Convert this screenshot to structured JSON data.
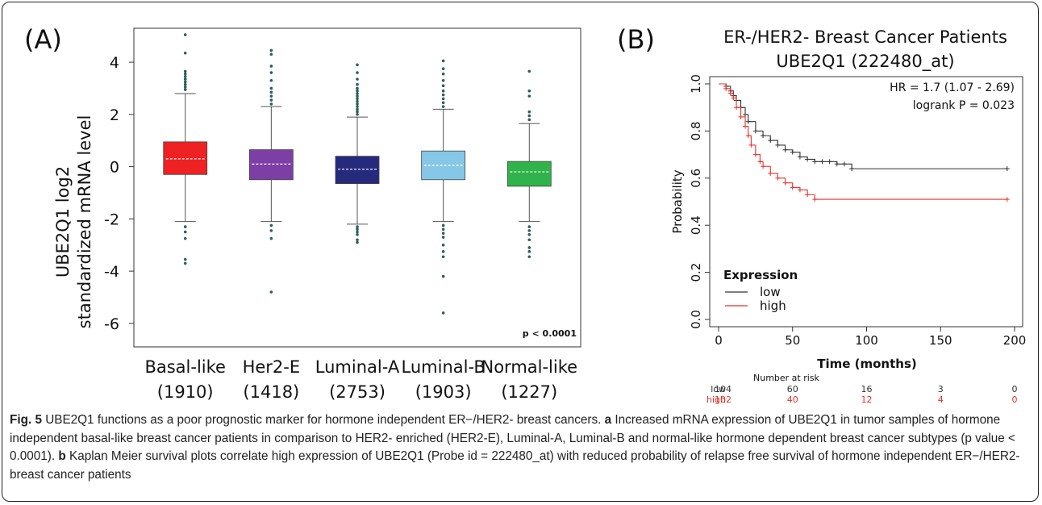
{
  "figure": {
    "caption": {
      "fig_label": "Fig. 5",
      "title": "UBE2Q1 functions as a poor prognostic marker for hormone independent ER−/HER2- breast cancers.",
      "a_label": "a",
      "a_text": "Increased mRNA expression of UBE2Q1 in tumor samples of hormone independent basal-like breast cancer patients in comparison to HER2- enriched (HER2-E), Luminal-A, Luminal-B and normal-like hormone dependent breast cancer subtypes (p value < 0.0001).",
      "b_label": "b",
      "b_text": "Kaplan Meier survival plots correlate high expression of UBE2Q1 (Probe id = 222480_at) with reduced probability of relapse free survival of hormone independent ER−/HER2- breast cancer patients"
    }
  },
  "chart_data": [
    {
      "type": "box",
      "panel_label": "(A)",
      "ylabel_line1": "UBE2Q1 log2",
      "ylabel_line2": "standardized mRNA level",
      "ylim": [
        -6.9,
        5.3
      ],
      "yticks": [
        4,
        2,
        0,
        -2,
        -4,
        -6
      ],
      "annotation": "p < 0.0001",
      "categories": [
        "Basal-like",
        "Her2-E",
        "Luminal-A",
        "Luminal-B",
        "Normal-like"
      ],
      "counts": [
        "(1910)",
        "(1418)",
        "(2753)",
        "(1903)",
        "(1227)"
      ],
      "colors": [
        "#ee2222",
        "#7d3ea6",
        "#262a7c",
        "#86c6e6",
        "#2fb34a"
      ],
      "boxes": [
        {
          "q1": -0.3,
          "median": 0.3,
          "q3": 0.95,
          "whisker_low": -2.1,
          "whisker_high": 2.8,
          "outliers": [
            2.95,
            3.05,
            3.15,
            3.25,
            3.35,
            3.45,
            3.55,
            3.65,
            4.35,
            5.05,
            -2.3,
            -2.5,
            -2.75,
            -3.55,
            -3.7
          ]
        },
        {
          "q1": -0.5,
          "median": 0.1,
          "q3": 0.65,
          "whisker_low": -2.1,
          "whisker_high": 2.3,
          "outliers": [
            2.4,
            2.55,
            2.7,
            2.85,
            3.0,
            3.3,
            3.6,
            3.85,
            4.3,
            4.45,
            -2.25,
            -2.45,
            -2.75,
            -4.8
          ]
        },
        {
          "q1": -0.65,
          "median": -0.1,
          "q3": 0.4,
          "whisker_low": -2.2,
          "whisker_high": 1.9,
          "outliers": [
            2.0,
            2.1,
            2.2,
            2.3,
            2.4,
            2.5,
            2.6,
            2.7,
            2.8,
            2.9,
            3.0,
            3.15,
            3.35,
            3.6,
            3.9,
            -2.3,
            -2.4,
            -2.5,
            -2.6,
            -2.8,
            -2.9
          ]
        },
        {
          "q1": -0.5,
          "median": 0.05,
          "q3": 0.6,
          "whisker_low": -2.1,
          "whisker_high": 2.2,
          "outliers": [
            2.3,
            2.45,
            2.6,
            2.75,
            2.9,
            3.1,
            3.3,
            3.55,
            3.75,
            4.05,
            -2.25,
            -2.4,
            -2.55,
            -2.7,
            -3.0,
            -3.25,
            -3.45,
            -4.2,
            -5.6
          ]
        },
        {
          "q1": -0.75,
          "median": -0.2,
          "q3": 0.2,
          "whisker_low": -2.1,
          "whisker_high": 1.65,
          "outliers": [
            1.8,
            1.95,
            2.1,
            2.7,
            2.9,
            3.65,
            -2.3,
            -2.45,
            -2.6,
            -2.8,
            -3.1,
            -3.25,
            -3.45
          ]
        }
      ]
    },
    {
      "type": "line",
      "subtype": "kaplan-meier",
      "panel_label": "(B)",
      "title_line1": "ER-/HER2- Breast Cancer Patients",
      "title_line2": "UBE2Q1 (222480_at)",
      "xlabel": "Time (months)",
      "ylabel": "Probability",
      "xlim": [
        0,
        200
      ],
      "ylim": [
        0,
        1
      ],
      "xticks": [
        0,
        50,
        100,
        150,
        200
      ],
      "yticks": [
        0.0,
        0.2,
        0.4,
        0.6,
        0.8,
        1.0
      ],
      "hr_text": "HR = 1.7 (1.07 - 2.69)",
      "logrank_text": "logrank P = 0.023",
      "legend": {
        "title": "Expression",
        "position": "bottom-left"
      },
      "series": [
        {
          "name": "low",
          "color": "#333333",
          "x": [
            0,
            5,
            8,
            10,
            12,
            15,
            18,
            20,
            25,
            30,
            35,
            40,
            45,
            50,
            55,
            60,
            65,
            70,
            75,
            80,
            85,
            90,
            195
          ],
          "y": [
            1.0,
            0.99,
            0.97,
            0.95,
            0.93,
            0.9,
            0.87,
            0.84,
            0.8,
            0.78,
            0.76,
            0.74,
            0.72,
            0.71,
            0.69,
            0.68,
            0.67,
            0.67,
            0.67,
            0.66,
            0.66,
            0.64,
            0.64
          ]
        },
        {
          "name": "high",
          "color": "#e8322c",
          "x": [
            0,
            5,
            8,
            10,
            12,
            15,
            18,
            20,
            22,
            25,
            28,
            30,
            35,
            40,
            45,
            50,
            55,
            60,
            65,
            195
          ],
          "y": [
            1.0,
            0.98,
            0.96,
            0.94,
            0.9,
            0.86,
            0.82,
            0.78,
            0.74,
            0.7,
            0.67,
            0.65,
            0.62,
            0.6,
            0.58,
            0.56,
            0.55,
            0.53,
            0.51,
            0.51
          ]
        }
      ],
      "risk_table": {
        "header": "Number at risk",
        "times": [
          0,
          50,
          100,
          150,
          200
        ],
        "rows": [
          {
            "name": "low",
            "color": "#333333",
            "values": [
              "104",
              "60",
              "16",
              "3",
              "0"
            ]
          },
          {
            "name": "high",
            "color": "#e8322c",
            "values": [
              "102",
              "40",
              "12",
              "4",
              "0"
            ]
          }
        ]
      }
    }
  ]
}
